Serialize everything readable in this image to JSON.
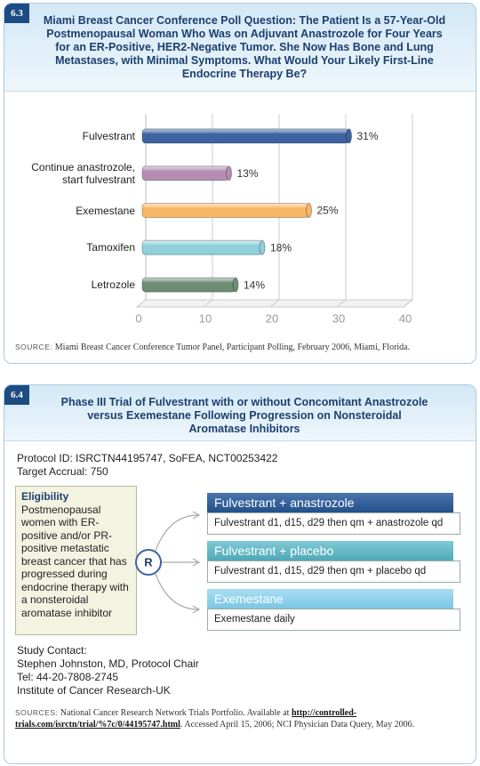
{
  "chart_data": {
    "type": "bar",
    "orientation": "horizontal",
    "title": "Miami Breast Cancer Conference Poll Question: The Patient Is a 57-Year-Old Postmenopausal Woman Who Was on Adjuvant Anastrozole for Four Years for an ER-Positive, HER2-Negative Tumor. She Now Has Bone and Lung Metastases, with Minimal Symptoms. What Would Your Likely First-Line Endocrine Therapy Be?",
    "categories": [
      "Fulvestrant",
      "Continue anastrozole, start fulvestrant",
      "Exemestane",
      "Tamoxifen",
      "Letrozole"
    ],
    "values": [
      31,
      13,
      25,
      18,
      14
    ],
    "value_labels": [
      "31%",
      "13%",
      "25%",
      "18%",
      "14%"
    ],
    "colors": [
      "#3d64a0",
      "#b48db3",
      "#f7b665",
      "#8fd0dc",
      "#6e8d74"
    ],
    "xlim": [
      0,
      40
    ],
    "xticks": [
      0,
      10,
      20,
      30,
      40
    ],
    "grid": true
  },
  "panel_1": {
    "number": "6.3",
    "source_label": "SOURCE:",
    "source": "Miami Breast Cancer Conference Tumor Panel, Participant Polling, February 2006, Miami, Florida."
  },
  "panel_2": {
    "number": "6.4",
    "title": "Phase III Trial of Fulvestrant with or without Concomitant Anastrozole versus Exemestane Following Progression on Nonsteroidal Aromatase Inhibitors",
    "protocol": "Protocol ID: ISRCTN44195747, SoFEA, NCT00253422",
    "accrual": "Target Accrual: 750",
    "eligibility_heading": "Eligibility",
    "eligibility_text": "Postmenopausal women with ER-positive and/or PR-positive metastatic breast cancer that has progressed during endocrine therapy with a nonsteroidal aromatase inhibitor",
    "randomization": "R",
    "arms": [
      {
        "name": "Fulvestrant + anastrozole",
        "detail": "Fulvestrant d1, d15, d29 then qm + anastrozole qd"
      },
      {
        "name": "Fulvestrant + placebo",
        "detail": "Fulvestrant d1, d15, d29 then qm + placebo qd"
      },
      {
        "name": "Exemestane",
        "detail": "Exemestane daily"
      }
    ],
    "contact": [
      "Study Contact:",
      "Stephen Johnston, MD, Protocol Chair",
      "Tel: 44-20-7808-2745",
      "Institute of Cancer Research-UK"
    ],
    "sources_label": "SOURCES:",
    "sources_text_1": "National Cancer Research Network Trials Portfolio. Available at",
    "sources_link": "http://controlled-trials.com/isrctn/trial/%7c/0/44195747.html",
    "sources_text_2": ". Accessed April 15, 2006; NCI Physician Data Query, May 2006."
  }
}
